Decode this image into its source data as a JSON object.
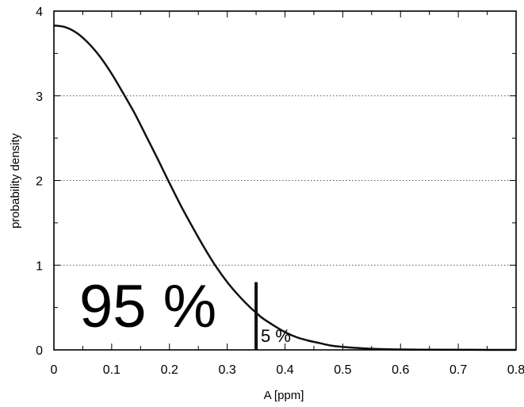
{
  "chart_data": {
    "type": "line",
    "title": "",
    "xlabel": "A [ppm]",
    "ylabel": "probability density",
    "xlim": [
      0,
      0.8
    ],
    "ylim": [
      0,
      4
    ],
    "x_ticks": [
      0,
      0.1,
      0.2,
      0.3,
      0.4,
      0.5,
      0.6,
      0.7,
      0.8
    ],
    "x_tick_labels": [
      "0",
      "0.1",
      "0.2",
      "0.3",
      "0.4",
      "0.5",
      "0.6",
      "0.7",
      "0.8"
    ],
    "y_ticks": [
      0,
      1,
      2,
      3,
      4
    ],
    "y_tick_labels": [
      "0",
      "1",
      "2",
      "3",
      "4"
    ],
    "grid": "horizontal-dotted",
    "series": [
      {
        "x": [
          0,
          0.02,
          0.04,
          0.06,
          0.08,
          0.1,
          0.12,
          0.14,
          0.16,
          0.18,
          0.2,
          0.22,
          0.24,
          0.26,
          0.28,
          0.3,
          0.32,
          0.34,
          0.35,
          0.36,
          0.38,
          0.4,
          0.42,
          0.44,
          0.46,
          0.48,
          0.5,
          0.52,
          0.54,
          0.56,
          0.58,
          0.6,
          0.65,
          0.7,
          0.75,
          0.8
        ],
        "y": [
          3.83,
          3.81,
          3.74,
          3.62,
          3.46,
          3.26,
          3.03,
          2.79,
          2.52,
          2.25,
          1.97,
          1.7,
          1.45,
          1.21,
          0.99,
          0.8,
          0.64,
          0.5,
          0.44,
          0.38,
          0.29,
          0.21,
          0.15,
          0.11,
          0.08,
          0.05,
          0.035,
          0.025,
          0.016,
          0.011,
          0.007,
          0.005,
          0.002,
          0.001,
          0.0005,
          0.0002
        ]
      }
    ],
    "threshold": {
      "x": 0.35,
      "y_top": 0.8
    },
    "annotations": {
      "left": "95 %",
      "right": "5 %"
    }
  }
}
